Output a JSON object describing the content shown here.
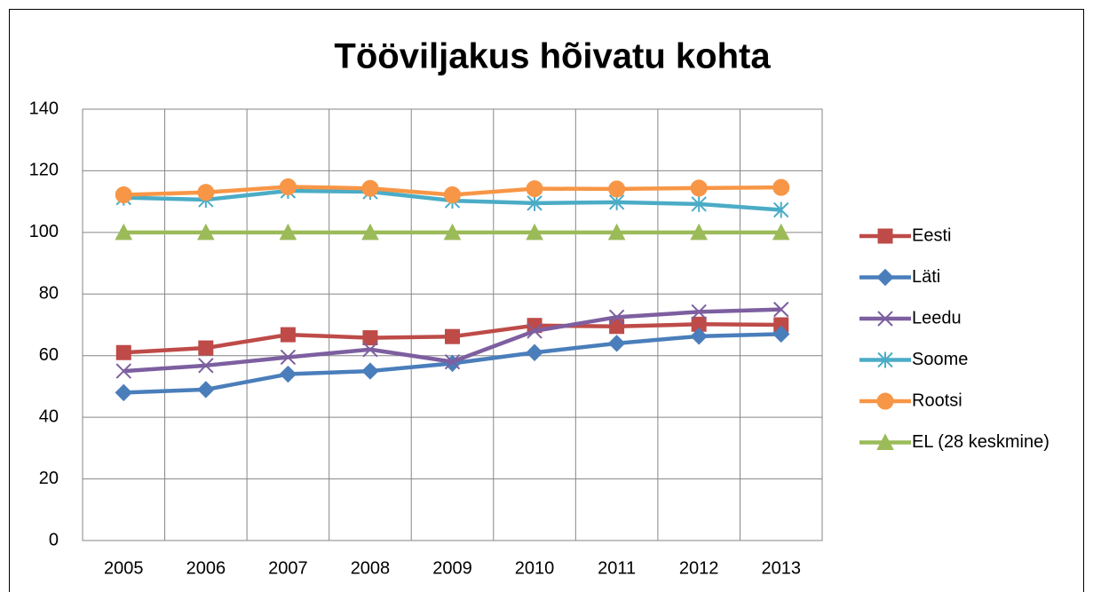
{
  "chart_data": {
    "type": "line",
    "title": "Tööviljakus hõivatu kohta",
    "categories": [
      "2005",
      "2006",
      "2007",
      "2008",
      "2009",
      "2010",
      "2011",
      "2012",
      "2013"
    ],
    "series": [
      {
        "name": "Eesti",
        "color": "#be4b48",
        "marker": "square",
        "values": [
          61,
          62.5,
          66.8,
          65.8,
          66.2,
          69.8,
          69.5,
          70.2,
          70
        ]
      },
      {
        "name": "Läti",
        "color": "#4a7ebb",
        "marker": "diamond",
        "values": [
          48,
          49,
          54,
          55,
          57.5,
          61,
          64,
          66.3,
          67
        ]
      },
      {
        "name": "Leedu",
        "color": "#7d5fa0",
        "marker": "x",
        "values": [
          55,
          56.8,
          59.5,
          62,
          58,
          68,
          72.5,
          74.2,
          75
        ]
      },
      {
        "name": "Soome",
        "color": "#4bacc6",
        "marker": "star",
        "values": [
          111.3,
          110.6,
          113.5,
          113.2,
          110.3,
          109.5,
          109.8,
          109.2,
          107.3
        ]
      },
      {
        "name": "Rootsi",
        "color": "#f79646",
        "marker": "circle",
        "values": [
          112.2,
          113,
          114.8,
          114.3,
          112.2,
          114.2,
          114.1,
          114.4,
          114.6
        ]
      },
      {
        "name": "EL (28 keskmine)",
        "color": "#9bbb59",
        "marker": "triangle",
        "values": [
          100,
          100,
          100,
          100,
          100,
          100,
          100,
          100,
          100
        ]
      }
    ],
    "ylim": [
      0,
      140
    ],
    "yticks": [
      0,
      20,
      40,
      60,
      80,
      100,
      120,
      140
    ],
    "grid": true,
    "legend": "right"
  }
}
